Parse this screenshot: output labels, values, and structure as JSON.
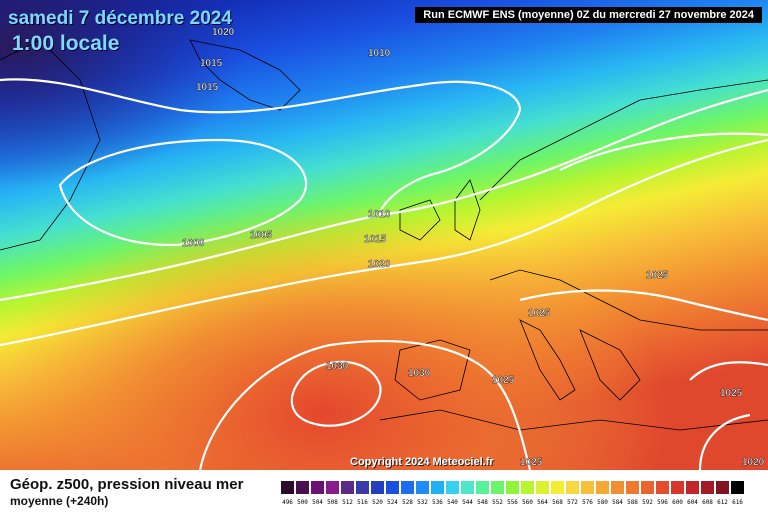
{
  "header": {
    "date": "samedi 7 décembre 2024",
    "time": "1:00 locale",
    "run_info": "Run ECMWF ENS (moyenne) 0Z du mercredi 27 novembre 2024"
  },
  "map": {
    "copyright": "Copyright 2024 Meteociel.fr",
    "isobar_labels": [
      "1020",
      "1015",
      "1015",
      "1010",
      "1000",
      "1005",
      "1010",
      "1015",
      "1020",
      "1025",
      "1025",
      "1030",
      "1030",
      "1025",
      "1025",
      "1025",
      "1020"
    ]
  },
  "legend": {
    "title": "Géop. z500, pression niveau mer",
    "subtitle": "moyenne  (+240h)",
    "scale_labels": [
      "496",
      "500",
      "504",
      "508",
      "512",
      "516",
      "520",
      "524",
      "528",
      "532",
      "536",
      "540",
      "544",
      "548",
      "552",
      "556",
      "560",
      "564",
      "568",
      "572",
      "576",
      "580",
      "584",
      "588",
      "592",
      "596",
      "600",
      "604",
      "608",
      "612",
      "616"
    ],
    "scale_colors": [
      "#2b0a2b",
      "#4a0f4f",
      "#6a1274",
      "#8c1a8f",
      "#5a2a8a",
      "#3a3aa8",
      "#2040c0",
      "#1a4fe0",
      "#1e6cf0",
      "#1f8cf5",
      "#22b0f5",
      "#35d2f0",
      "#4fe6c8",
      "#58f09a",
      "#6cf56a",
      "#8ef53c",
      "#b6f530",
      "#dcf230",
      "#f5ec35",
      "#f8d840",
      "#f8c03a",
      "#f6a835",
      "#f28f32",
      "#ee7a30",
      "#ea6430",
      "#e44c2e",
      "#d8362c",
      "#c2262a",
      "#a41a26",
      "#801420",
      "#000000"
    ]
  }
}
